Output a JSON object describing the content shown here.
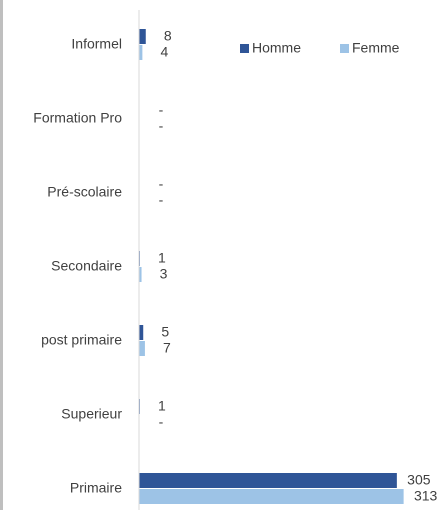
{
  "chart_data": {
    "type": "hbar",
    "categories": [
      "Informel",
      "Formation Pro",
      "Pré-scolaire",
      "Secondaire",
      "post primaire",
      "Superieur",
      "Primaire"
    ],
    "series": [
      {
        "name": "Homme",
        "color": "#2f5597",
        "values": [
          8,
          0,
          0,
          1,
          5,
          1,
          305
        ],
        "value_labels": [
          "8",
          "-",
          "-",
          "1",
          "5",
          "1",
          "305"
        ]
      },
      {
        "name": "Femme",
        "color": "#9dc3e6",
        "values": [
          4,
          0,
          0,
          3,
          7,
          0,
          313
        ],
        "value_labels": [
          "4",
          "-",
          "-",
          "3",
          "7",
          "-",
          "313"
        ]
      }
    ],
    "xlim": [
      0,
      330
    ],
    "legend": "top-right"
  }
}
